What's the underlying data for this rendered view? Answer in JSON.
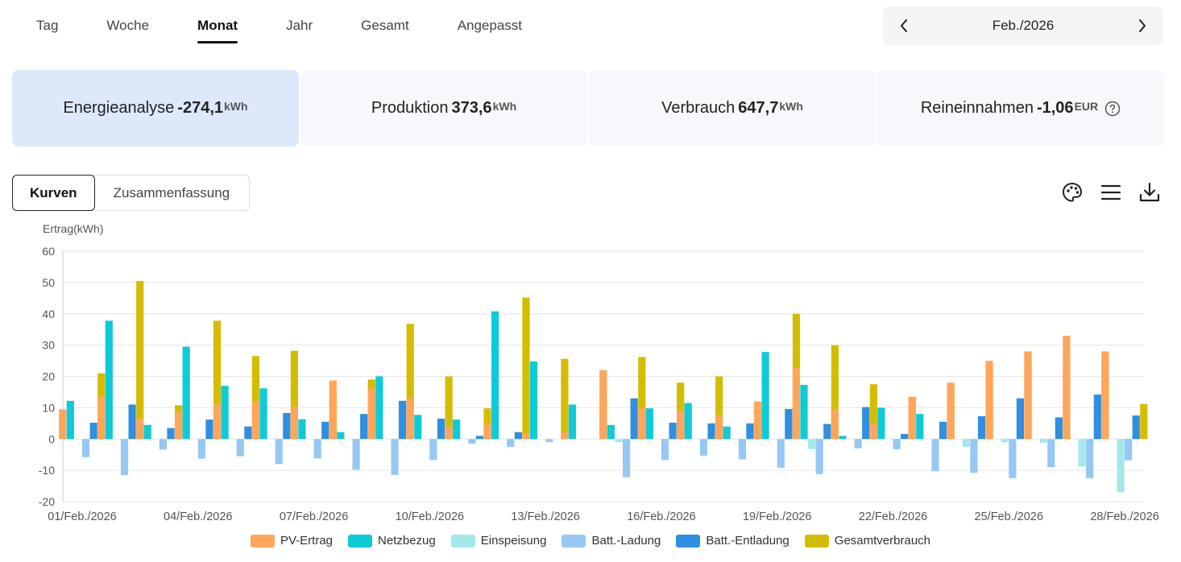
{
  "tabs": [
    {
      "label": "Tag",
      "active": false
    },
    {
      "label": "Woche",
      "active": false
    },
    {
      "label": "Monat",
      "active": true
    },
    {
      "label": "Jahr",
      "active": false
    },
    {
      "label": "Gesamt",
      "active": false
    },
    {
      "label": "Angepasst",
      "active": false
    }
  ],
  "date_picker": {
    "label": "Feb./2026"
  },
  "cards": [
    {
      "label": "Energieanalyse",
      "value": "-274,1",
      "unit": "kWh",
      "active": true
    },
    {
      "label": "Produktion",
      "value": "373,6",
      "unit": "kWh",
      "active": false
    },
    {
      "label": "Verbrauch",
      "value": "647,7",
      "unit": "kWh",
      "active": false
    },
    {
      "label": "Reineinnahmen",
      "value": "-1,06",
      "unit": "EUR",
      "active": false
    }
  ],
  "view_switch": {
    "curves": "Kurven",
    "summary": "Zusammenfassung"
  },
  "toolbar_icons": [
    "palette-icon",
    "list-icon",
    "download-icon"
  ],
  "chart_data": {
    "type": "bar",
    "ylabel": "Ertrag(kWh)",
    "ylim": [
      -20,
      60
    ],
    "yticks": [
      -20,
      -10,
      0,
      10,
      20,
      30,
      40,
      50,
      60
    ],
    "grid": true,
    "legend_position": "bottom",
    "categories": [
      "01/Feb./2026",
      "02/Feb./2026",
      "03/Feb./2026",
      "04/Feb./2026",
      "05/Feb./2026",
      "06/Feb./2026",
      "07/Feb./2026",
      "08/Feb./2026",
      "09/Feb./2026",
      "10/Feb./2026",
      "11/Feb./2026",
      "12/Feb./2026",
      "13/Feb./2026",
      "14/Feb./2026",
      "15/Feb./2026",
      "16/Feb./2026",
      "17/Feb./2026",
      "18/Feb./2026",
      "19/Feb./2026",
      "20/Feb./2026",
      "21/Feb./2026",
      "22/Feb./2026",
      "23/Feb./2026",
      "24/Feb./2026",
      "25/Feb./2026",
      "26/Feb./2026",
      "27/Feb./2026",
      "28/Feb./2026"
    ],
    "xtick_labels": [
      "01/Feb./2026",
      "04/Feb./2026",
      "07/Feb./2026",
      "10/Feb./2026",
      "13/Feb./2026",
      "16/Feb./2026",
      "19/Feb./2026",
      "22/Feb./2026",
      "25/Feb./2026",
      "28/Feb./2026"
    ],
    "series": [
      {
        "name": "PV-Ertrag",
        "color": "#ffa65a",
        "values": [
          9.5,
          13.5,
          6.5,
          8.5,
          11,
          12,
          10.3,
          18.7,
          16.2,
          13,
          4,
          4.7,
          1.6,
          2.5,
          22,
          10,
          9,
          7.7,
          12,
          22.7,
          9.5,
          5,
          13.5,
          18,
          25,
          28,
          33,
          28
        ]
      },
      {
        "name": "Netzbezug",
        "color": "#0fcad8",
        "values": [
          12.2,
          37.8,
          4.5,
          29.5,
          17,
          16.2,
          6.3,
          2.2,
          20,
          7.7,
          6.2,
          40.8,
          24.8,
          11,
          4.5,
          9.8,
          11.5,
          4,
          27.8,
          17.3,
          1,
          10,
          8,
          0,
          0,
          0,
          0,
          0
        ]
      },
      {
        "name": "Einspeisung",
        "color": "#a4e8ea",
        "values": [
          0,
          0,
          0,
          0,
          0,
          0,
          0,
          0,
          0,
          0,
          0,
          0,
          0,
          0,
          -1,
          0,
          0,
          0,
          0,
          -3.2,
          0,
          0,
          0,
          -2.5,
          -1,
          -1.2,
          -8.8,
          -17
        ]
      },
      {
        "name": "Batt.-Ladung",
        "color": "#97c8f4",
        "values": [
          -5.8,
          -11.5,
          -3.4,
          -6.3,
          -5.5,
          -8,
          -6.2,
          -9.8,
          -11.5,
          -6.7,
          -1.5,
          -2.5,
          -1,
          0,
          -12.2,
          -6.7,
          -5.3,
          -6.5,
          -9.2,
          -11.2,
          -3,
          -3.3,
          -10.3,
          -10.8,
          -12.5,
          -9,
          -12.5,
          -6.8
        ]
      },
      {
        "name": "Batt.-Entladung",
        "color": "#2f8fe0",
        "values": [
          5.2,
          11,
          3.5,
          6.2,
          4,
          8.3,
          5.5,
          8,
          12.2,
          6.5,
          1,
          2.2,
          0,
          0,
          13,
          5.2,
          5,
          5,
          9.6,
          4.8,
          10.2,
          1.6,
          5.5,
          7.3,
          13,
          6.9,
          14.2,
          7.5
        ]
      },
      {
        "name": "Gesamtverbrauch",
        "color": "#d4bd00",
        "values": [
          21,
          50.5,
          10.8,
          37.8,
          26.5,
          28.2,
          15.5,
          19,
          36.8,
          20,
          9.8,
          45.2,
          25.6,
          13.6,
          26.2,
          18,
          20,
          9.8,
          40,
          30,
          17.5,
          13.3,
          16.3,
          11.5,
          24.5,
          24.5,
          25.5,
          11.2
        ]
      }
    ]
  }
}
